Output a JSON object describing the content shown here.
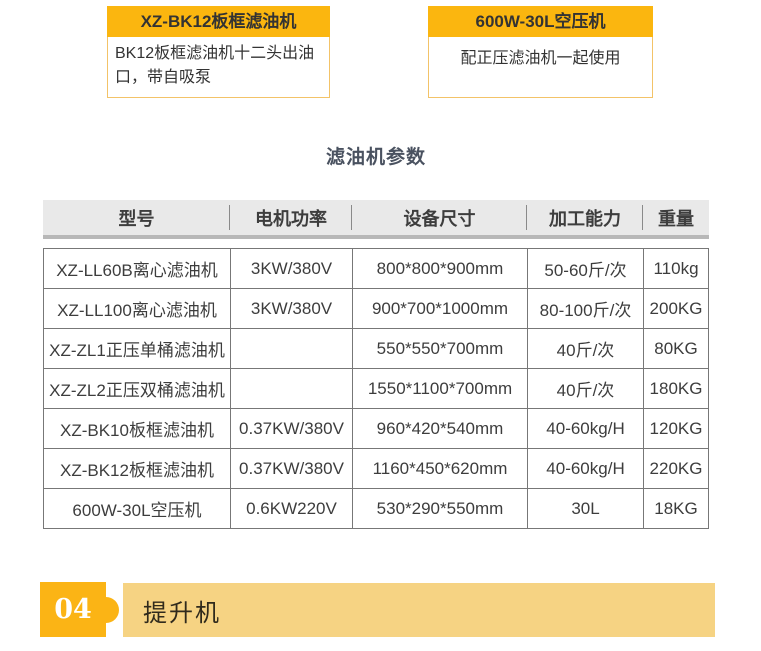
{
  "colors": {
    "accent_yellow": "#fbb60f",
    "card_border_yellow": "#f3c368",
    "banner_light_yellow": "#f6d383",
    "badge_orange": "#fbb415",
    "table_header_bg": "#e9e9e9",
    "table_border": "#777777",
    "text_dark": "#3d3d3d",
    "title_color": "#4a5260"
  },
  "product_cards": [
    {
      "title": "XZ-BK12板框滤油机",
      "description": "BK12板框滤油机十二头出油口，带自吸泵"
    },
    {
      "title": "600W-30L空压机",
      "description": "配正压滤油机一起使用"
    }
  ],
  "section_title": "滤油机参数",
  "table": {
    "headers": [
      "型号",
      "电机功率",
      "设备尺寸",
      "加工能力",
      "重量"
    ],
    "rows": [
      [
        "XZ-LL60B离心滤油机",
        "3KW/380V",
        "800*800*900mm",
        "50-60斤/次",
        "110kg"
      ],
      [
        "XZ-LL100离心滤油机",
        "3KW/380V",
        "900*700*1000mm",
        "80-100斤/次",
        "200KG"
      ],
      [
        "XZ-ZL1正压单桶滤油机",
        "",
        "550*550*700mm",
        "40斤/次",
        "80KG"
      ],
      [
        "XZ-ZL2正压双桶滤油机",
        "",
        "1550*1100*700mm",
        "40斤/次",
        "180KG"
      ],
      [
        "XZ-BK10板框滤油机",
        "0.37KW/380V",
        "960*420*540mm",
        "40-60kg/H",
        "120KG"
      ],
      [
        "XZ-BK12板框滤油机",
        "0.37KW/380V",
        "1160*450*620mm",
        "40-60kg/H",
        "220KG"
      ],
      [
        "600W-30L空压机",
        "0.6KW220V",
        "530*290*550mm",
        "30L",
        "18KG"
      ]
    ]
  },
  "section_banner": {
    "number": "04",
    "label": "提升机"
  }
}
